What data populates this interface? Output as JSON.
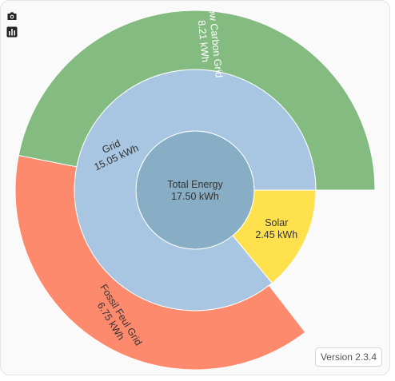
{
  "toolbar": {
    "camera_icon": "camera-icon",
    "stats_icon": "bar-chart-icon"
  },
  "version_label": "Version 2.3.4",
  "chart_data": {
    "type": "sunburst",
    "unit": "kWh",
    "root": {
      "name": "Total Energy",
      "value": 17.5,
      "value_label": "17.50 kWh",
      "color": "#87aec4"
    },
    "children": [
      {
        "name": "Grid",
        "value": 15.05,
        "value_label": "15.05 kWh",
        "color": "#a8c5e1",
        "children": [
          {
            "name": "Low Carbon Grid",
            "value": 8.21,
            "value_label": "8.21 kWh",
            "color": "#83bb81"
          },
          {
            "name": "Fossil Feul Grid",
            "value": 6.75,
            "value_label": "6.75 kWh",
            "color": "#fe8a6e"
          }
        ]
      },
      {
        "name": "Solar",
        "value": 2.45,
        "value_label": "2.45 kWh",
        "color": "#ffe04d",
        "children": []
      }
    ]
  }
}
